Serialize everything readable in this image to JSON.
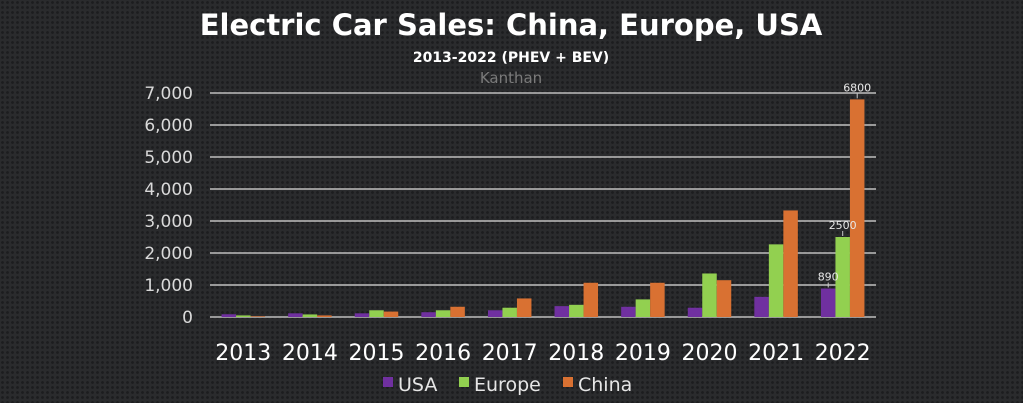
{
  "chart_data": {
    "type": "bar",
    "title": "Electric Car Sales: China, Europe, USA",
    "subtitle": "2013-2022 (PHEV + BEV)",
    "author": "Kanthan",
    "xlabel": "",
    "ylabel": "",
    "ylim": [
      0,
      7000
    ],
    "yticks": [
      0,
      1000,
      2000,
      3000,
      4000,
      5000,
      6000,
      7000
    ],
    "ytick_labels": [
      "0",
      "1,000",
      "2,000",
      "3,000",
      "4,000",
      "5,000",
      "6,000",
      "7,000"
    ],
    "grid": true,
    "legend_position": "bottom",
    "categories": [
      "2013",
      "2014",
      "2015",
      "2016",
      "2017",
      "2018",
      "2019",
      "2020",
      "2021",
      "2022"
    ],
    "series": [
      {
        "name": "USA",
        "color": "#7030a0",
        "values": [
          85,
          115,
          115,
          150,
          210,
          340,
          320,
          290,
          630,
          890
        ]
      },
      {
        "name": "Europe",
        "color": "#92d050",
        "values": [
          50,
          80,
          210,
          210,
          290,
          380,
          550,
          1360,
          2270,
          2500
        ]
      },
      {
        "name": "China",
        "color": "#d97132",
        "values": [
          20,
          50,
          170,
          320,
          580,
          1070,
          1070,
          1150,
          3330,
          6800
        ]
      }
    ],
    "data_labels": [
      {
        "series": 0,
        "index": 9,
        "text": "890"
      },
      {
        "series": 1,
        "index": 9,
        "text": "2500"
      },
      {
        "series": 2,
        "index": 9,
        "text": "6800"
      }
    ]
  }
}
